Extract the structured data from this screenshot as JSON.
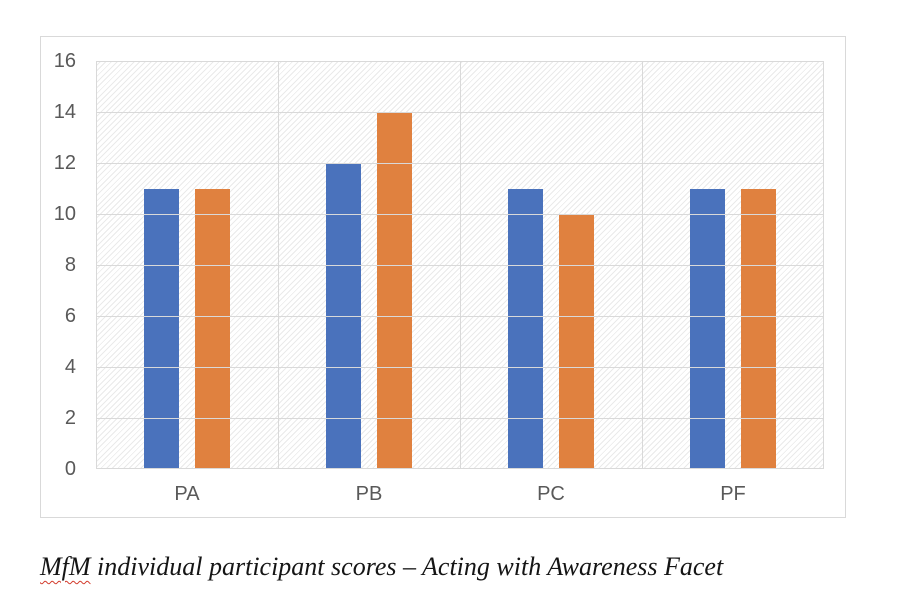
{
  "figure": {
    "caption": {
      "misspelled_word": "MfM",
      "rest": " individual participant scores – Acting with Awareness Facet"
    }
  },
  "chart_data": {
    "type": "bar",
    "title": "",
    "xlabel": "",
    "ylabel": "",
    "categories": [
      "PA",
      "PB",
      "PC",
      "PF"
    ],
    "series": [
      {
        "name": "blue",
        "color": "#4a72bc",
        "values": [
          11,
          12,
          11,
          11
        ]
      },
      {
        "name": "orange",
        "color": "#e0813f",
        "values": [
          11,
          14,
          10,
          11
        ]
      }
    ],
    "ylim": [
      0,
      16
    ],
    "yticks": [
      0,
      2,
      4,
      6,
      8,
      10,
      12,
      14,
      16
    ],
    "grid": "horizontal-and-vertical",
    "legend": "none",
    "plot_background": "light-diagonal-hatch"
  },
  "colors": {
    "gridline": "#d9d9d9",
    "hatch_line": "#eaeaea",
    "axis_label_text": "#595959",
    "chart_border": "#d9d9d9",
    "caption_text": "#151515",
    "squiggle": "#d23a2b"
  }
}
